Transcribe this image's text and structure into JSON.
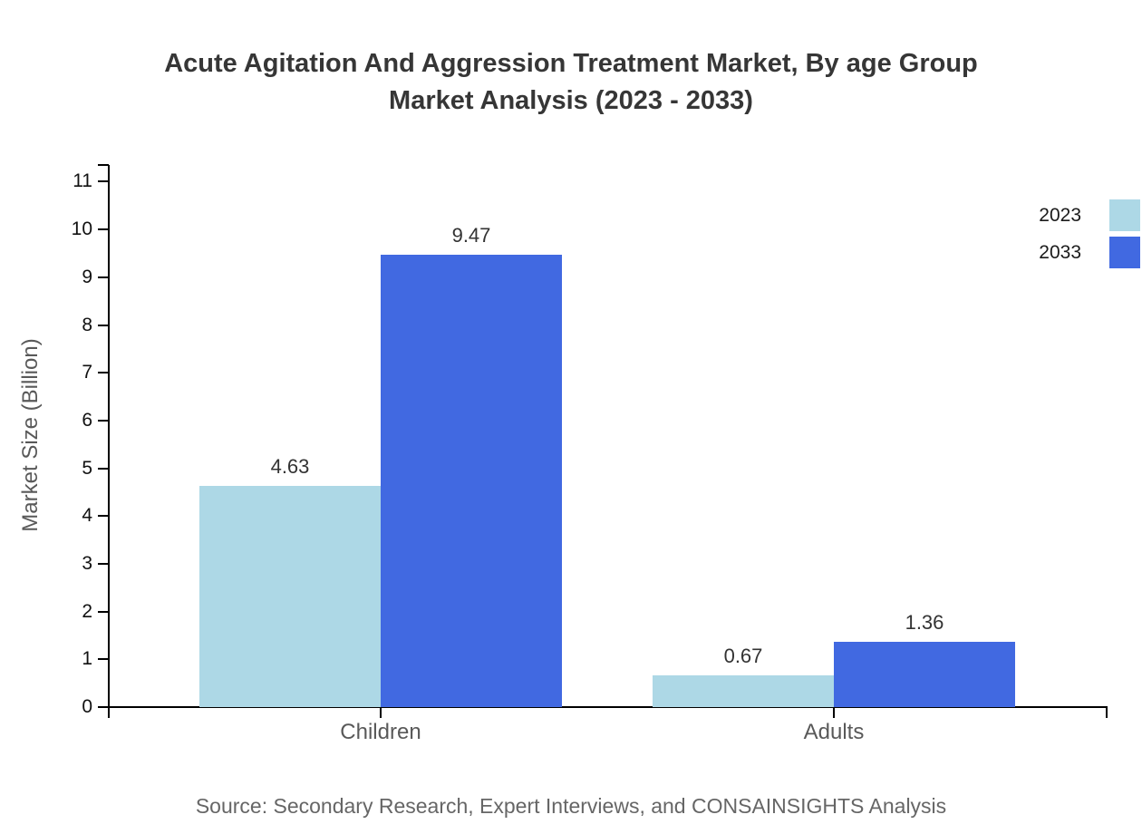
{
  "title": {
    "line1": "Acute Agitation And Aggression Treatment Market, By age Group",
    "line2": "Market Analysis (2023 - 2033)"
  },
  "source_note": "Source: Secondary Research, Expert Interviews, and CONSAINSIGHTS Analysis",
  "chart_data": {
    "type": "bar",
    "title": "Acute Agitation And Aggression Treatment Market, By age Group Market Analysis (2023 - 2033)",
    "categories": [
      "Children",
      "Adults"
    ],
    "series": [
      {
        "name": "2023",
        "color": "#ADD8E6",
        "values": [
          4.63,
          0.67
        ]
      },
      {
        "name": "2033",
        "color": "#4169E1",
        "values": [
          9.47,
          1.36
        ]
      }
    ],
    "value_labels": [
      "4.63",
      "9.47",
      "0.67",
      "1.36"
    ],
    "xlabel": "",
    "ylabel": "Market Size (Billion)",
    "ylim": [
      0,
      11.35
    ],
    "y_ticks": [
      0,
      1,
      2,
      3,
      4,
      5,
      6,
      7,
      8,
      9,
      10,
      11
    ],
    "grid": false,
    "legend_position": "top-right",
    "bar_value_label_color": "#333333",
    "axis_color": "#000000"
  }
}
